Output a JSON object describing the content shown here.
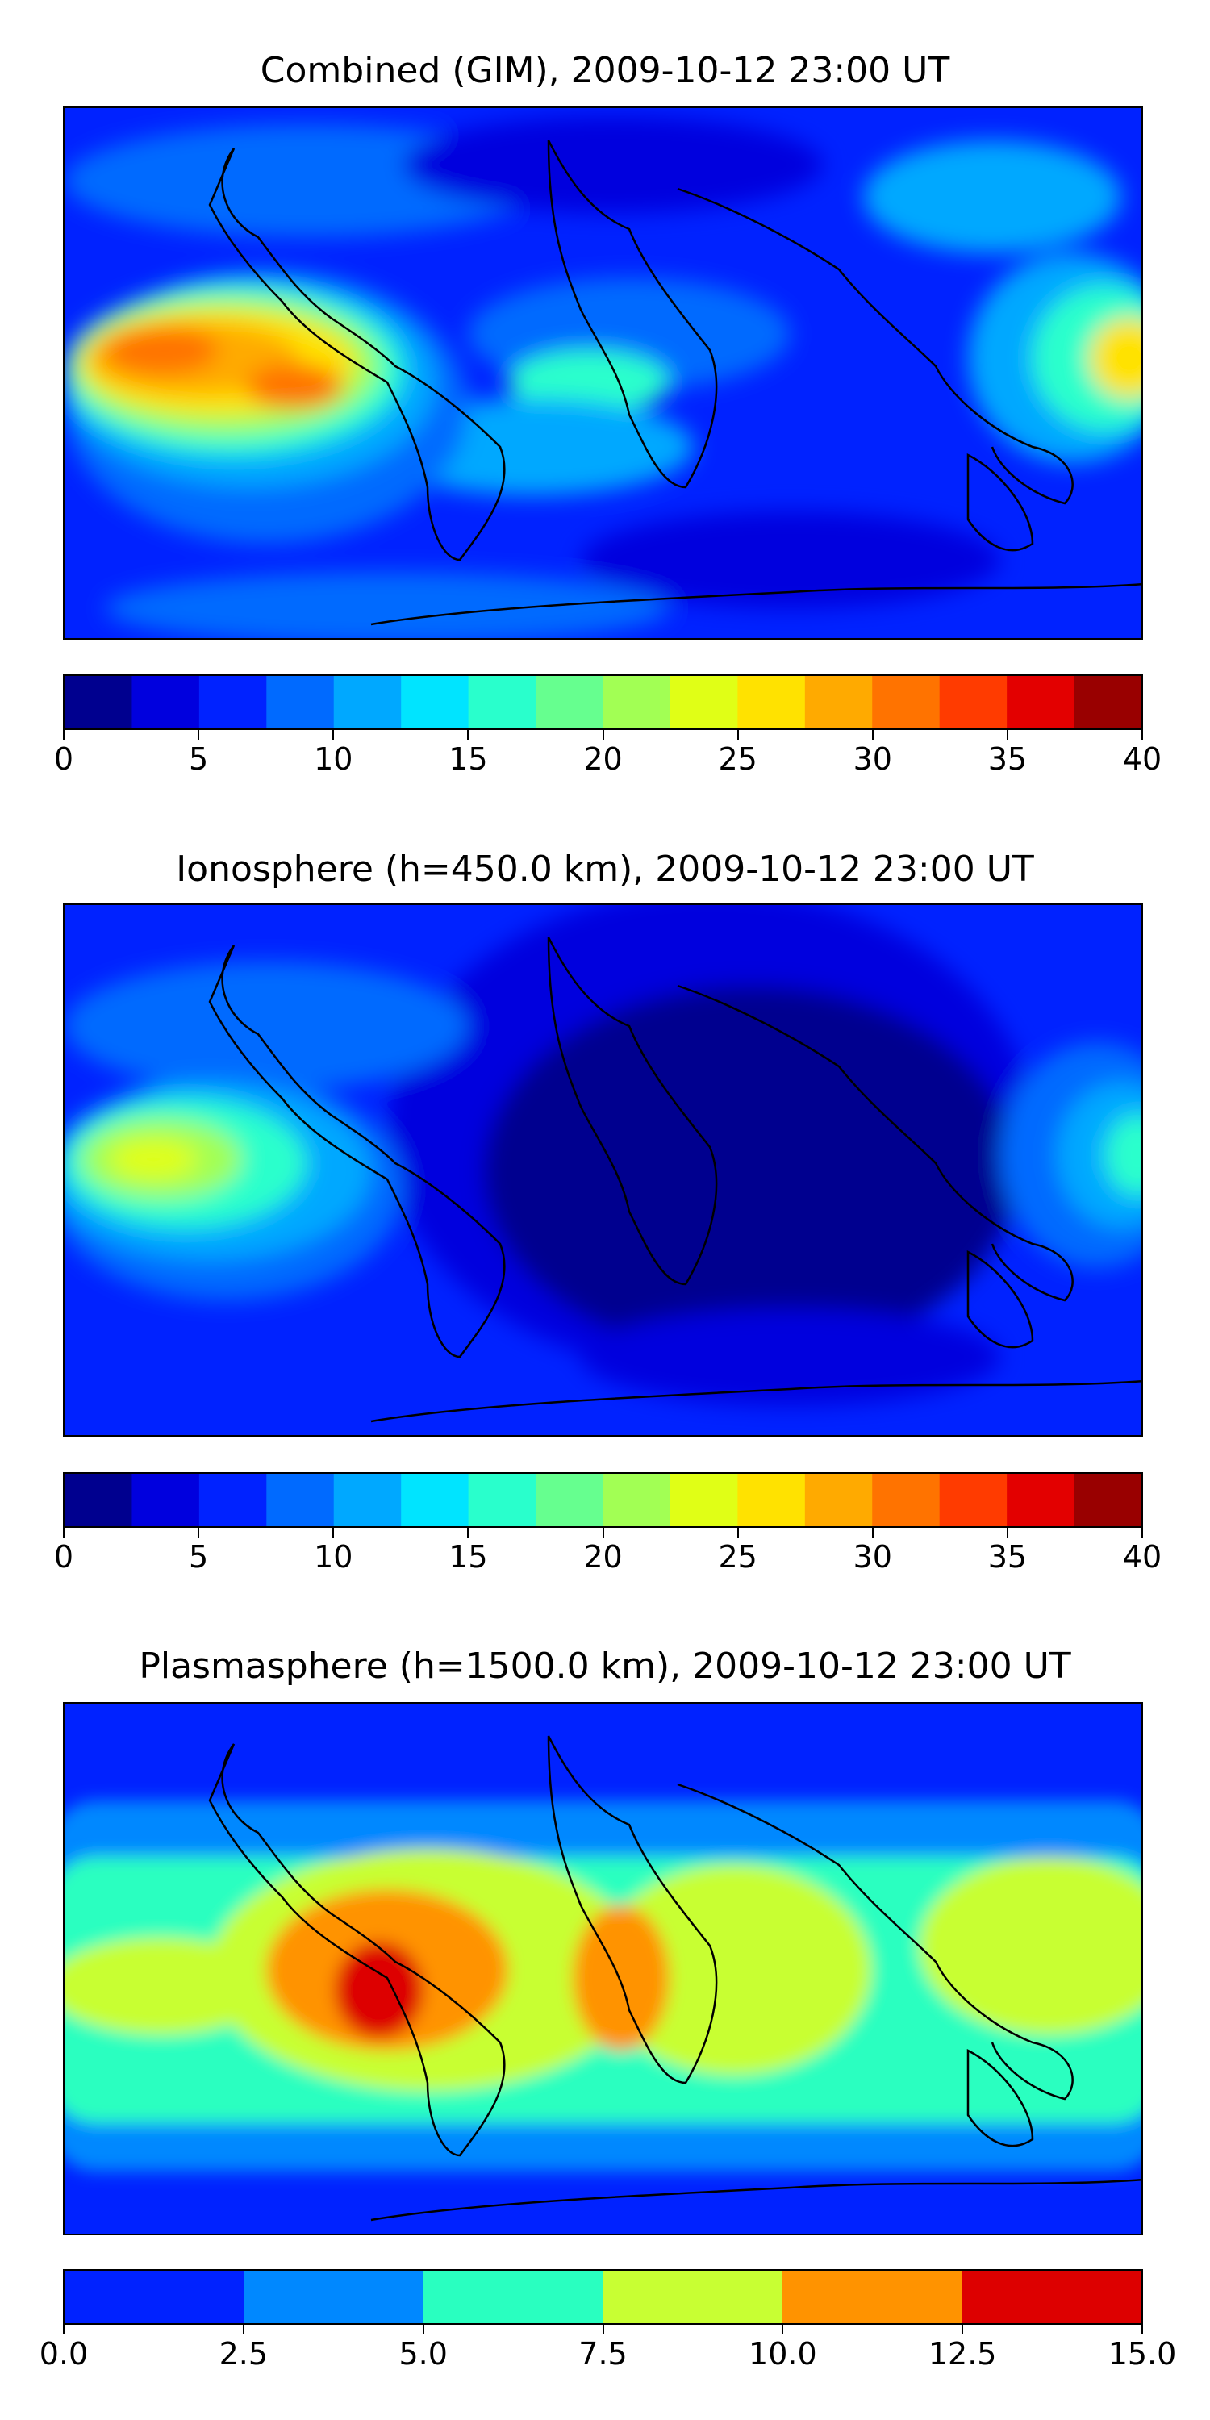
{
  "panels": [
    {
      "title": "Combined (GIM), 2009-10-12 23:00 UT",
      "colorbar": {
        "colors": [
          "#00008f",
          "#0000de",
          "#0022ff",
          "#006aff",
          "#00a8ff",
          "#00e4ff",
          "#29ffcc",
          "#66ff8f",
          "#a2ff54",
          "#e0ff16",
          "#ffe200",
          "#ffaa00",
          "#ff7300",
          "#ff3b00",
          "#e30000",
          "#990000"
        ],
        "ticks": [
          "0",
          "5",
          "10",
          "15",
          "20",
          "25",
          "30",
          "35",
          "40"
        ]
      }
    },
    {
      "title": "Ionosphere  (h=450.0 km), 2009-10-12 23:00 UT",
      "colorbar": {
        "colors": [
          "#00008f",
          "#0000de",
          "#0022ff",
          "#006aff",
          "#00a8ff",
          "#00e4ff",
          "#29ffcc",
          "#66ff8f",
          "#a2ff54",
          "#e0ff16",
          "#ffe200",
          "#ffaa00",
          "#ff7300",
          "#ff3b00",
          "#e30000",
          "#990000"
        ],
        "ticks": [
          "0",
          "5",
          "10",
          "15",
          "20",
          "25",
          "30",
          "35",
          "40"
        ]
      }
    },
    {
      "title": "Plasmasphere (h=1500.0 km), 2009-10-12 23:00 UT",
      "colorbar": {
        "colors": [
          "#0022ff",
          "#0088ff",
          "#29ffc0",
          "#c8ff33",
          "#ff9300",
          "#dd0000"
        ],
        "ticks": [
          "0.0",
          "2.5",
          "5.0",
          "7.5",
          "10.0",
          "12.5",
          "15.0"
        ]
      }
    }
  ]
}
